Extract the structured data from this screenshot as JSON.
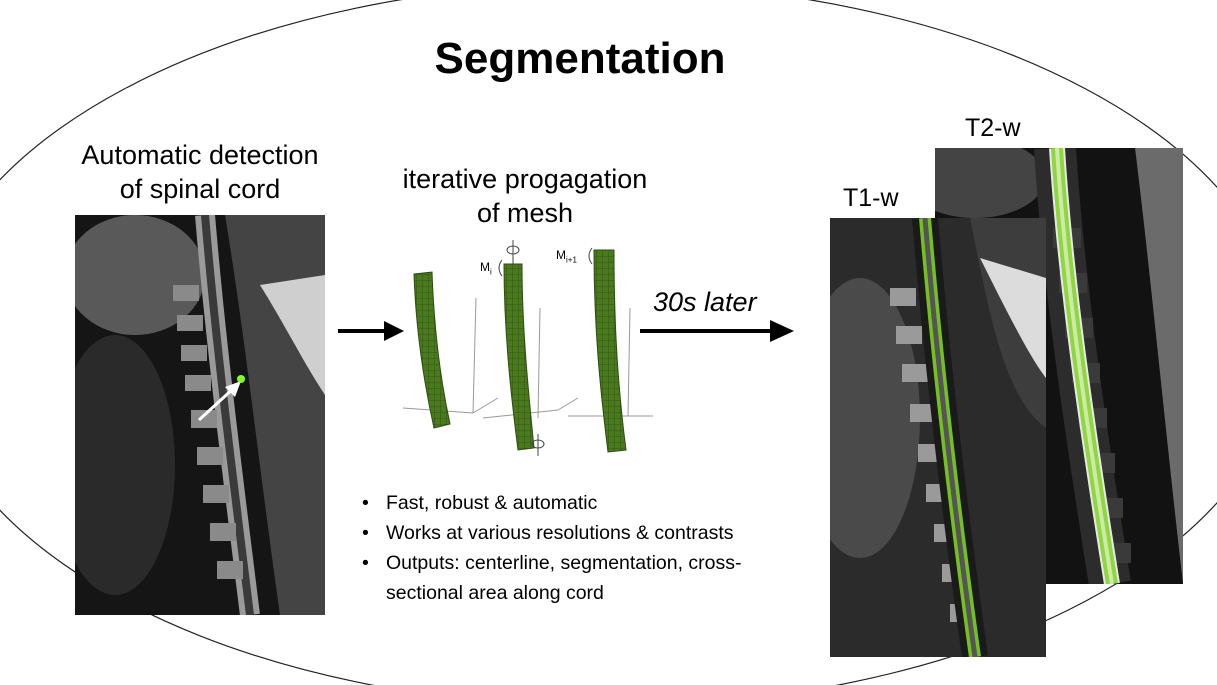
{
  "slide": {
    "title": "Segmentation",
    "detection_caption_line1": "Automatic detection",
    "detection_caption_line2": "of spinal cord",
    "mesh_caption_line1": "iterative progagation",
    "mesh_caption_line2": "of mesh",
    "mesh_label_left": "M",
    "mesh_label_left_sub": "i",
    "mesh_label_right": "M",
    "mesh_label_right_sub": "i+1",
    "time_label": "30s later",
    "t1_label": "T1-w",
    "t2_label": "T2-w"
  },
  "bullets": [
    "Fast, robust & automatic",
    "Works at various resolutions & contrasts",
    "Outputs: centerline, segmentation, cross-sectional area along cord"
  ],
  "colors": {
    "cord_highlight": "#7ed321",
    "detection_point": "#80ff20",
    "mesh_fill": "#4a7a1e",
    "mesh_grid": "#2d4d10",
    "background": "#ffffff",
    "ellipse_outline": "#222222"
  }
}
